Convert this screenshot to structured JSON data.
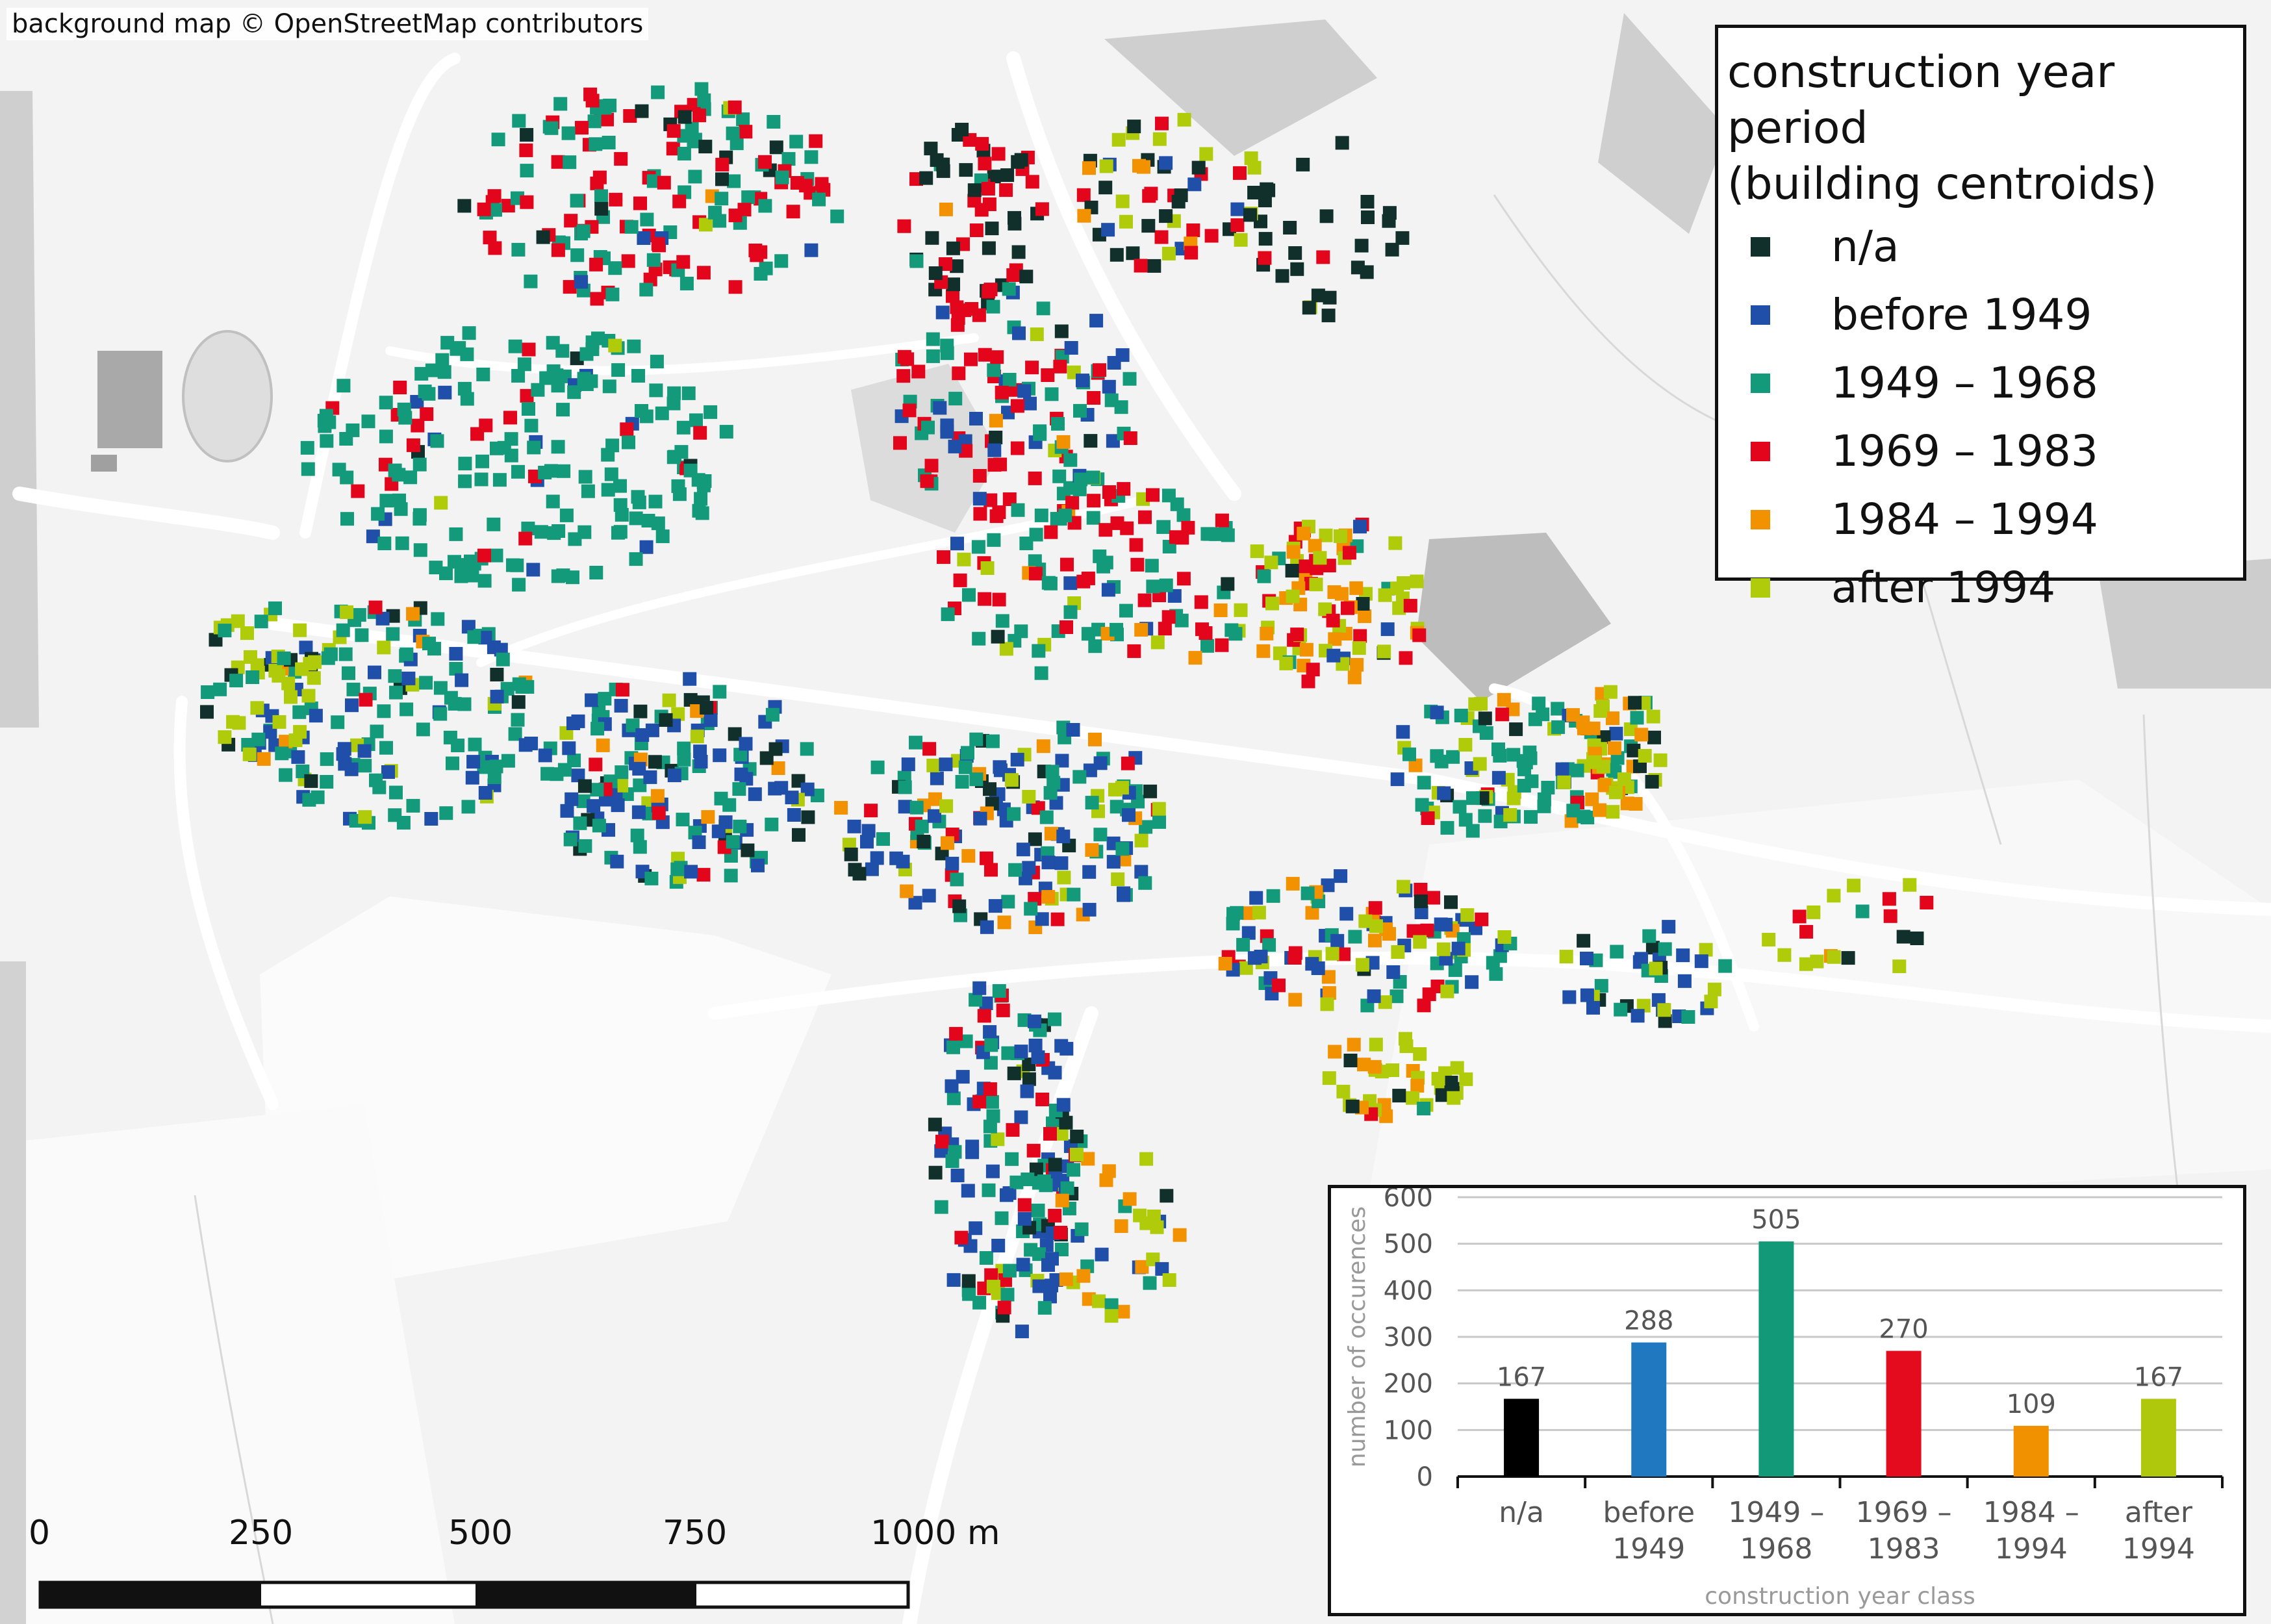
{
  "attribution": "background map © OpenStreetMap contributors",
  "legend": {
    "title_line1": "construction year period",
    "title_line2": "(building centroids)",
    "items": [
      {
        "label": "n/a",
        "color": "#12302b"
      },
      {
        "label": "before 1949",
        "color": "#1f4fa8"
      },
      {
        "label": "1949 – 1968",
        "color": "#139a7a"
      },
      {
        "label": "1969 – 1983",
        "color": "#e3051b"
      },
      {
        "label": "1984 – 1994",
        "color": "#f39200"
      },
      {
        "label": "after 1994",
        "color": "#b0cb0a"
      }
    ]
  },
  "scale_bar": {
    "labels": [
      "0",
      "250",
      "500",
      "750",
      "1000 m"
    ]
  },
  "chart_data": {
    "type": "bar",
    "categories": [
      "n/a",
      "before 1949",
      "1949 – 1968",
      "1969 – 1983",
      "1984 – 1994",
      "after 1994"
    ],
    "category_lines": [
      [
        "n/a"
      ],
      [
        "before",
        "1949"
      ],
      [
        "1949 –",
        "1968"
      ],
      [
        "1969 –",
        "1983"
      ],
      [
        "1984 –",
        "1994"
      ],
      [
        "after",
        "1994"
      ]
    ],
    "values": [
      167,
      288,
      505,
      270,
      109,
      167
    ],
    "colors": [
      "#000000",
      "#1f78c0",
      "#129a78",
      "#e30b1d",
      "#f29100",
      "#b0c80c"
    ],
    "xlabel": "construction year class",
    "ylabel": "number of occurences",
    "ylim": [
      0,
      600
    ],
    "yticks": [
      0,
      100,
      200,
      300,
      400,
      500,
      600
    ],
    "grid": true
  }
}
